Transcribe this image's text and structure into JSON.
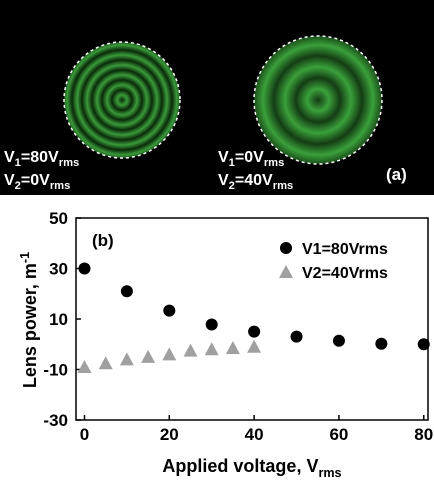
{
  "image_panel": {
    "labels": [
      {
        "line1": [
          "V",
          "1",
          "=80V",
          "rms"
        ],
        "line2": [
          "V",
          "2",
          "=0V",
          "rms"
        ]
      },
      {
        "line1": [
          "V",
          "1",
          "=0V",
          "rms"
        ],
        "line2": [
          "V",
          "2",
          "=40V",
          "rms"
        ]
      }
    ],
    "tag": "(a)"
  },
  "chart_data": {
    "type": "scatter",
    "annotation": "(b)",
    "x_label": [
      "Applied voltage, V",
      "rms"
    ],
    "y_label": [
      "Lens power, m",
      "-1"
    ],
    "xlim": [
      -2,
      81
    ],
    "ylim": [
      -30,
      50
    ],
    "xticks": [
      0,
      20,
      40,
      60,
      80
    ],
    "yticks": [
      -30,
      -10,
      10,
      30,
      50
    ],
    "legend": "upper right",
    "series": [
      {
        "name": "V1=80Vrms",
        "color": "#000000",
        "marker": "circle",
        "x": [
          0,
          10,
          20,
          30,
          40,
          50,
          60,
          70,
          80
        ],
        "values": [
          30,
          21,
          13.3,
          7.8,
          5,
          3,
          1.4,
          0.2,
          0
        ]
      },
      {
        "name": "V2=40Vrms",
        "color": "#a0a0a0",
        "marker": "triangle",
        "x": [
          0,
          5,
          10,
          15,
          20,
          25,
          30,
          35,
          40
        ],
        "values": [
          -9,
          -7.5,
          -6,
          -5,
          -4,
          -2.5,
          -2,
          -1.5,
          -1
        ]
      }
    ]
  }
}
